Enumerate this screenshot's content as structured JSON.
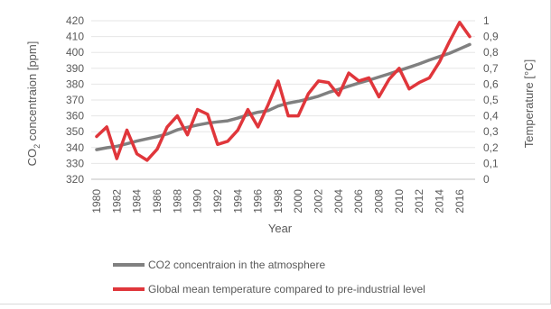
{
  "chart_data": {
    "type": "line",
    "title": "",
    "xlabel": "Year",
    "ylabel_left": "CO2 concentraion [ppm]",
    "ylabel_left_parts": [
      "CO",
      "2",
      " concentraion [ppm]"
    ],
    "ylabel_right": "Temperature [°C]",
    "ylim_left": [
      320,
      420
    ],
    "ylim_right": [
      0,
      1
    ],
    "yticks_left": [
      "320",
      "330",
      "340",
      "350",
      "360",
      "370",
      "380",
      "390",
      "400",
      "410",
      "420"
    ],
    "yticks_right": [
      "0",
      "0,1",
      "0,2",
      "0,3",
      "0,4",
      "0,5",
      "0,6",
      "0,7",
      "0,8",
      "0,9",
      "1"
    ],
    "x": [
      1980,
      1981,
      1982,
      1983,
      1984,
      1985,
      1986,
      1987,
      1988,
      1989,
      1990,
      1991,
      1992,
      1993,
      1994,
      1995,
      1996,
      1997,
      1998,
      1999,
      2000,
      2001,
      2002,
      2003,
      2004,
      2005,
      2006,
      2007,
      2008,
      2009,
      2010,
      2011,
      2012,
      2013,
      2014,
      2015,
      2016,
      2017
    ],
    "xtick_labels": [
      "1980",
      "1982",
      "1984",
      "1986",
      "1988",
      "1990",
      "1992",
      "1994",
      "1996",
      "1998",
      "2000",
      "2002",
      "2004",
      "2006",
      "2008",
      "2010",
      "2012",
      "2014",
      "2016"
    ],
    "grid": "horizontal",
    "legend_position": "bottom",
    "series": [
      {
        "name": "CO2 concentraion in the atmosphere",
        "axis": "left",
        "color": "#808080",
        "values": [
          338.7,
          339.9,
          340.8,
          342.4,
          344.1,
          345.5,
          346.9,
          348.6,
          351.2,
          352.8,
          354.2,
          355.4,
          356.2,
          356.9,
          358.6,
          360.6,
          362.3,
          363.3,
          366.2,
          368.0,
          369.2,
          370.7,
          372.4,
          374.8,
          376.7,
          378.7,
          380.7,
          382.5,
          384.5,
          386.5,
          388.6,
          390.6,
          392.8,
          395.2,
          397.4,
          399.5,
          402.2,
          405.0
        ]
      },
      {
        "name": "Global mean temperature compared to pre-industrial level",
        "axis": "right",
        "color": "#e0363b",
        "values": [
          0.27,
          0.33,
          0.13,
          0.31,
          0.16,
          0.12,
          0.19,
          0.33,
          0.4,
          0.28,
          0.44,
          0.41,
          0.22,
          0.24,
          0.31,
          0.44,
          0.33,
          0.47,
          0.62,
          0.4,
          0.4,
          0.54,
          0.62,
          0.61,
          0.53,
          0.67,
          0.62,
          0.64,
          0.52,
          0.63,
          0.7,
          0.57,
          0.61,
          0.64,
          0.74,
          0.87,
          0.99,
          0.9
        ]
      }
    ]
  }
}
